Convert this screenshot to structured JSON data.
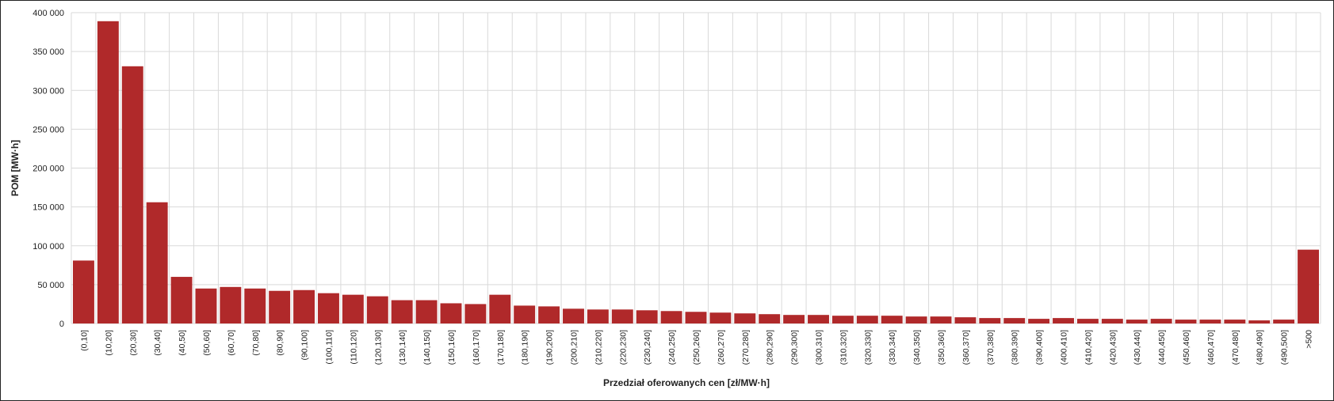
{
  "chart_data": {
    "type": "bar",
    "title": "",
    "xlabel": "Przedział oferowanych cen [zł/MW·h]",
    "ylabel": "POM [MW·h]",
    "ylim": [
      0,
      400000
    ],
    "yticks": [
      0,
      50000,
      100000,
      150000,
      200000,
      250000,
      300000,
      350000,
      400000
    ],
    "ytick_labels": [
      "0",
      "50 000",
      "100 000",
      "150 000",
      "200 000",
      "250 000",
      "300 000",
      "350 000",
      "400 000"
    ],
    "grid": true,
    "legend": "none",
    "bar_color": "#b0292a",
    "categories": [
      "(0,10]",
      "(10,20]",
      "(20,30]",
      "(30,40]",
      "(40,50]",
      "(50,60]",
      "(60,70]",
      "(70,80]",
      "(80,90]",
      "(90,100]",
      "(100,110]",
      "(110,120]",
      "(120,130]",
      "(130,140]",
      "(140,150]",
      "(150,160]",
      "(160,170]",
      "(170,180]",
      "(180,190]",
      "(190,200]",
      "(200,210]",
      "(210,220]",
      "(220,230]",
      "(230,240]",
      "(240,250]",
      "(250,260]",
      "(260,270]",
      "(270,280]",
      "(280,290]",
      "(290,300]",
      "(300,310]",
      "(310,320]",
      "(320,330]",
      "(330,340]",
      "(340,350]",
      "(350,360]",
      "(360,370]",
      "(370,380]",
      "(380,390]",
      "(390,400]",
      "(400,410]",
      "(410,420]",
      "(420,430]",
      "(430,440]",
      "(440,450]",
      "(450,460]",
      "(460,470]",
      "(470,480]",
      "(480,490]",
      "(490,500]",
      ">500"
    ],
    "values": [
      81000,
      389000,
      331000,
      156000,
      60000,
      45000,
      47000,
      45000,
      42000,
      43000,
      39000,
      37000,
      35000,
      30000,
      30000,
      26000,
      25000,
      37000,
      23000,
      22000,
      19000,
      18000,
      18000,
      17000,
      16000,
      15000,
      14000,
      13000,
      12000,
      11000,
      11000,
      10000,
      10000,
      10000,
      9000,
      9000,
      8000,
      7000,
      7000,
      6000,
      7000,
      6000,
      6000,
      5000,
      6000,
      5000,
      5000,
      5000,
      4000,
      5000,
      95000
    ]
  }
}
